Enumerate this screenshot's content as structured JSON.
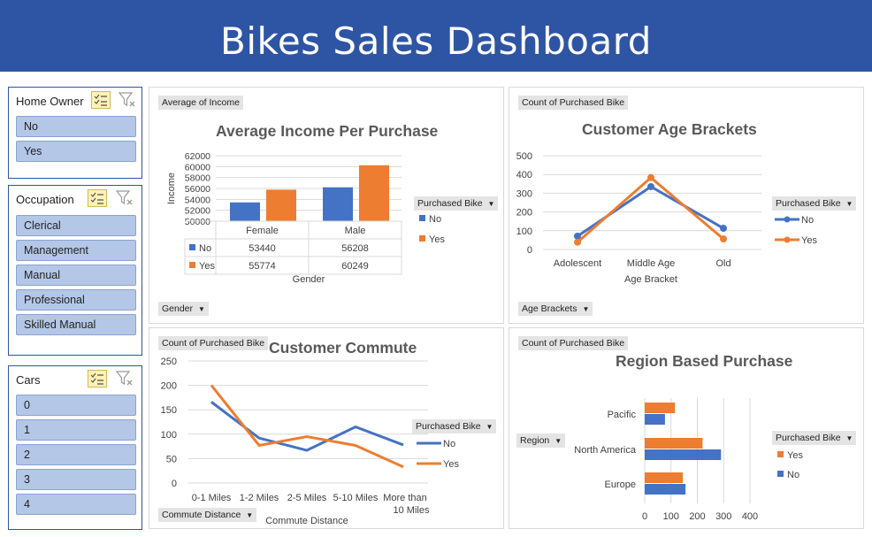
{
  "dashboard_title": "Bikes Sales Dashboard",
  "slicers": [
    {
      "title": "Home Owner",
      "items": [
        "No",
        "Yes"
      ]
    },
    {
      "title": "Occupation",
      "items": [
        "Clerical",
        "Management",
        "Manual",
        "Professional",
        "Skilled Manual"
      ]
    },
    {
      "title": "Cars",
      "items": [
        "0",
        "1",
        "2",
        "3",
        "4"
      ]
    }
  ],
  "legend_title": "Purchased Bike",
  "colors": {
    "No": "#4472c4",
    "Yes": "#ed7d31",
    "header": "#2e55a3"
  },
  "chart_data": [
    {
      "type": "bar",
      "title": "Average Income Per Purchase",
      "value_field": "Average of Income",
      "axis_field": "Gender",
      "xlabel": "Gender",
      "ylabel": "Income",
      "ylim": [
        50000,
        62000
      ],
      "yticks": [
        "62000",
        "60000",
        "58000",
        "56000",
        "54000",
        "52000",
        "50000"
      ],
      "categories": [
        "Female",
        "Male"
      ],
      "series": [
        {
          "name": "No",
          "values": [
            53440,
            56208
          ]
        },
        {
          "name": "Yes",
          "values": [
            55774,
            60249
          ]
        }
      ],
      "table": [
        [
          "53440",
          "56208"
        ],
        [
          "55774",
          "60249"
        ]
      ],
      "grid": true,
      "legend": "right"
    },
    {
      "type": "line",
      "title": "Customer Age Brackets",
      "value_field": "Count of Purchased Bike",
      "axis_field": "Age Brackets",
      "xlabel": "Age Bracket",
      "ylim": [
        0,
        500
      ],
      "yticks": [
        "500",
        "400",
        "300",
        "200",
        "100",
        "0"
      ],
      "categories": [
        "Adolescent",
        "Middle Age",
        "Old"
      ],
      "series": [
        {
          "name": "No",
          "values": [
            71,
            335,
            113
          ]
        },
        {
          "name": "Yes",
          "values": [
            39,
            383,
            56
          ]
        }
      ],
      "markers": true,
      "grid": true,
      "legend": "right"
    },
    {
      "type": "line",
      "title": "Customer Commute",
      "value_field": "Count of Purchased Bike",
      "axis_field": "Commute Distance",
      "xlabel": "Commute Distance",
      "ylim": [
        0,
        250
      ],
      "yticks": [
        "250",
        "200",
        "150",
        "100",
        "50",
        "0"
      ],
      "categories": [
        "0-1 Miles",
        "1-2 Miles",
        "2-5 Miles",
        "5-10 Miles",
        "More than 10 Miles"
      ],
      "series": [
        {
          "name": "No",
          "values": [
            166,
            92,
            67,
            115,
            78
          ]
        },
        {
          "name": "Yes",
          "values": [
            200,
            77,
            95,
            77,
            33
          ]
        }
      ],
      "markers": false,
      "grid": true,
      "legend": "right"
    },
    {
      "type": "bar",
      "orientation": "horizontal",
      "title": "Region Based Purchase",
      "value_field": "Count of Purchased Bike",
      "axis_field": "Region",
      "xlim": [
        0,
        400
      ],
      "xticks": [
        "0",
        "100",
        "200",
        "300",
        "400"
      ],
      "categories": [
        "Europe",
        "North America",
        "Pacific"
      ],
      "series": [
        {
          "name": "No",
          "values": [
            155,
            290,
            77
          ]
        },
        {
          "name": "Yes",
          "values": [
            145,
            220,
            115
          ]
        }
      ],
      "grid": true,
      "legend": "right"
    }
  ]
}
